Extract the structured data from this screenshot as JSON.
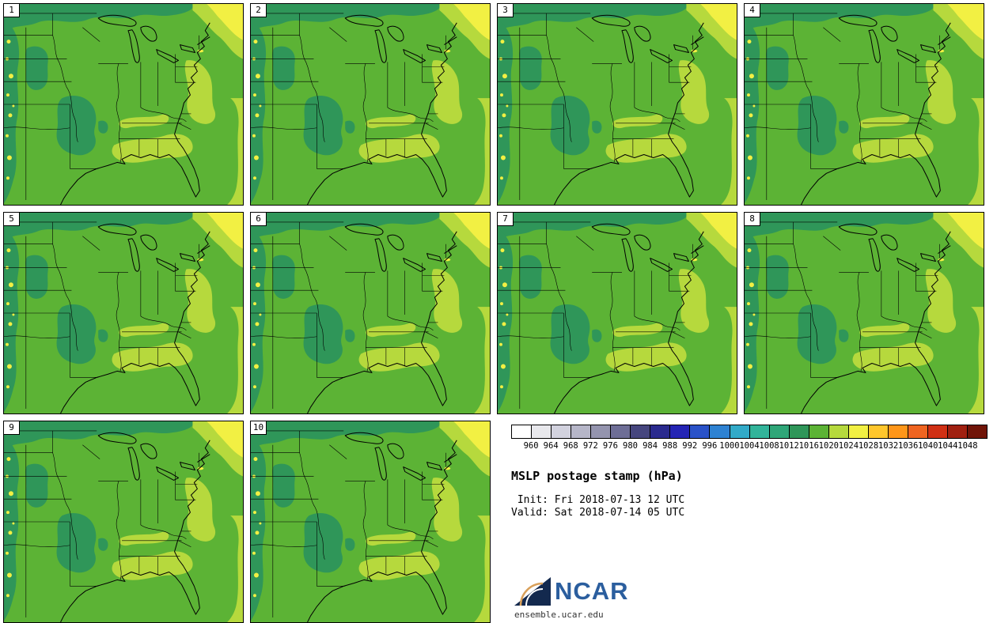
{
  "panels": [
    {
      "label": "1"
    },
    {
      "label": "2"
    },
    {
      "label": "3"
    },
    {
      "label": "4"
    },
    {
      "label": "5"
    },
    {
      "label": "6"
    },
    {
      "label": "7"
    },
    {
      "label": "8"
    },
    {
      "label": "9"
    },
    {
      "label": "10"
    }
  ],
  "legend": {
    "title": "MSLP postage stamp (hPa)",
    "init_line": " Init: Fri 2018-07-13 12 UTC",
    "valid_line": "Valid: Sat 2018-07-14 05 UTC",
    "logo_text": "NCAR",
    "logo_url": "ensemble.ucar.edu"
  },
  "map_colors": {
    "main": "#5cb335",
    "low": "#2f9659",
    "high": "#b6d93d",
    "higher": "#f2f043"
  },
  "chart_data": {
    "type": "heatmap",
    "title": "MSLP postage stamp (hPa)",
    "annotations": [
      "Init: Fri 2018-07-13 12 UTC",
      "Valid: Sat 2018-07-14 05 UTC"
    ],
    "units": "hPa",
    "members": [
      1,
      2,
      3,
      4,
      5,
      6,
      7,
      8,
      9,
      10
    ],
    "layout": "10 postage-stamp ensemble member maps (rows of 4,4,2), legend bottom-right",
    "region": "central and eastern United States",
    "approx_displayed_range_hpa": [
      1012,
      1028
    ],
    "colorbar": {
      "tick_labels": [
        960,
        964,
        968,
        972,
        976,
        980,
        984,
        988,
        992,
        996,
        1000,
        1004,
        1008,
        1012,
        1016,
        1020,
        1024,
        1028,
        1032,
        1036,
        1040,
        1044,
        1048
      ],
      "colors": [
        "#ffffff",
        "#e8e8ec",
        "#d2d2de",
        "#b6b6c8",
        "#9494ae",
        "#6e6e96",
        "#46467e",
        "#2a2a8e",
        "#2424b4",
        "#2a52c8",
        "#2e82d2",
        "#32aac8",
        "#32b49a",
        "#2fa678",
        "#2f9659",
        "#5cb335",
        "#b6d93d",
        "#f2f043",
        "#ffc62c",
        "#ff9619",
        "#ef6420",
        "#d03014",
        "#a02010",
        "#701408"
      ]
    }
  }
}
